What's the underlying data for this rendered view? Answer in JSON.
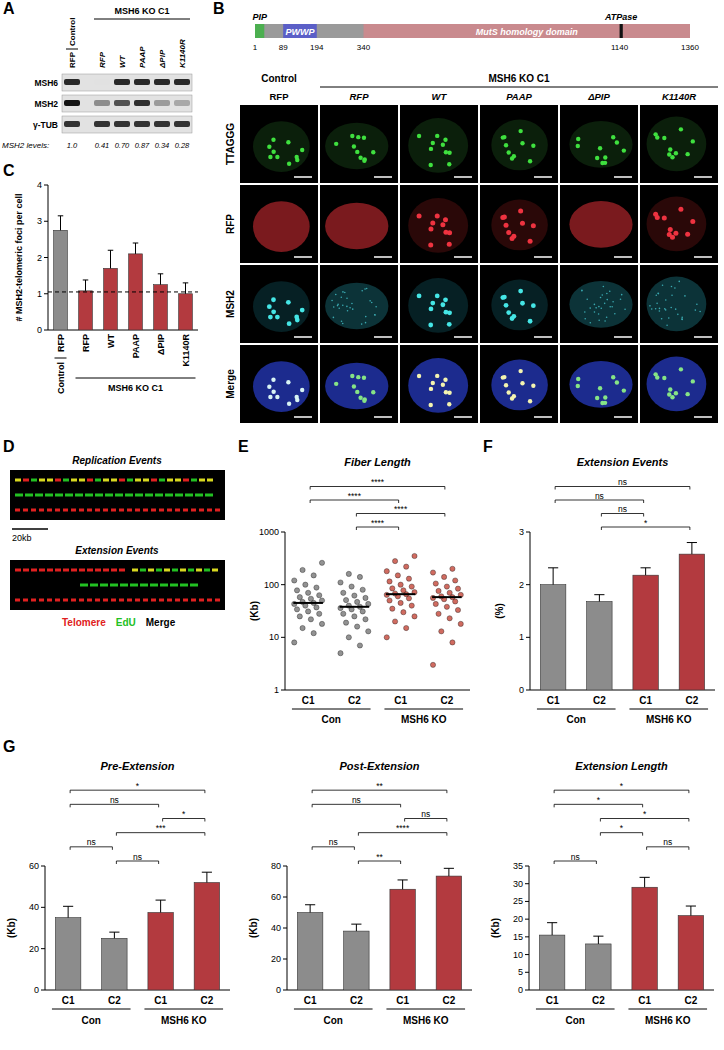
{
  "panel_labels": [
    "A",
    "B",
    "C",
    "D",
    "E",
    "F",
    "G"
  ],
  "blot": {
    "groups": [
      {
        "label": "Control",
        "lanes": [
          "RFP"
        ]
      },
      {
        "label": "MSH6 KO C1",
        "lanes": [
          "RFP",
          "WT",
          "PAAP",
          "ΔPIP",
          "K1140R"
        ]
      }
    ],
    "rows": [
      "MSH6",
      "MSH2",
      "γ-TUB"
    ],
    "quant_label": "MSH2 levels:",
    "quant": [
      "1.0",
      "0.41",
      "0.70",
      "0.87",
      "0.34",
      "0.28"
    ]
  },
  "domain": {
    "range": [
      1,
      1360
    ],
    "domains": [
      {
        "label": "PIP",
        "start": 1,
        "end": 30,
        "color": "#4caf50"
      },
      {
        "label": "PWWP",
        "start": 89,
        "end": 194,
        "color": "#5b5fc7"
      },
      {
        "label": "MutS homology domain",
        "start": 340,
        "end": 1360,
        "color": "#c98a8e"
      },
      {
        "label": "ATPase",
        "start": 1140,
        "end": 1150,
        "color": "#111111"
      }
    ],
    "ticks": [
      1,
      89,
      194,
      340,
      1140,
      1360
    ]
  },
  "microscopy": {
    "column_groups": [
      {
        "label": "Control",
        "columns": [
          "RFP"
        ]
      },
      {
        "label": "MSH6 KO C1",
        "columns": [
          "RFP",
          "WT",
          "PAAP",
          "ΔPIP",
          "K1140R"
        ]
      }
    ],
    "rows": [
      "TTAGGG",
      "RFP",
      "MSH2",
      "Merge"
    ]
  },
  "fibers": {
    "panels": [
      "Replication Events",
      "Extension Events"
    ],
    "scale_bar": "20kb",
    "legend": [
      {
        "label": "Telomere",
        "color": "#e02020"
      },
      {
        "label": "EdU",
        "color": "#22c022"
      },
      {
        "label": "Merge",
        "color": "#000000"
      }
    ]
  },
  "chart_data": [
    {
      "type": "bar",
      "ylabel": "# MSH2-telomeric foci per cell",
      "categories": [
        "RFP",
        "RFP",
        "WT",
        "PAAP",
        "ΔPIP",
        "K1140R"
      ],
      "groups": [
        {
          "label": "Control",
          "members": [
            0
          ]
        },
        {
          "label": "MSH6 KO C1",
          "members": [
            1,
            2,
            3,
            4,
            5
          ]
        }
      ],
      "values": [
        2.75,
        1.08,
        1.7,
        2.1,
        1.25,
        1.0
      ],
      "errors": [
        0.4,
        0.3,
        0.5,
        0.3,
        0.3,
        0.3
      ],
      "colors": [
        "#8c8c8c",
        "#b33a3f",
        "#b33a3f",
        "#b33a3f",
        "#b33a3f",
        "#b33a3f"
      ],
      "ylim": [
        0,
        4
      ],
      "yticks": [
        0,
        1,
        2,
        3,
        4
      ],
      "reference_line": 1.05
    },
    {
      "type": "strip",
      "title": "Fiber Length",
      "ylabel": "(Kb)",
      "log": "y",
      "categories": [
        "C1",
        "C2",
        "C1",
        "C2"
      ],
      "groups": [
        {
          "label": "Con",
          "members": [
            0,
            1
          ]
        },
        {
          "label": "MSH6 KO",
          "members": [
            2,
            3
          ]
        }
      ],
      "points": [
        [
          8,
          12,
          15,
          18,
          22,
          25,
          28,
          31,
          34,
          37,
          40,
          43,
          45,
          47,
          50,
          54,
          58,
          63,
          70,
          78,
          88,
          100,
          120,
          150,
          190,
          260
        ],
        [
          5,
          7,
          10,
          13,
          16,
          19,
          22,
          25,
          28,
          31,
          34,
          36,
          38,
          40,
          43,
          47,
          51,
          56,
          62,
          70,
          80,
          92,
          110,
          140,
          160
        ],
        [
          10,
          15,
          20,
          25,
          30,
          35,
          40,
          45,
          50,
          55,
          60,
          64,
          66,
          68,
          72,
          78,
          85,
          92,
          100,
          115,
          130,
          150,
          180,
          220,
          280,
          350
        ],
        [
          3,
          8,
          13,
          18,
          23,
          28,
          33,
          38,
          43,
          48,
          53,
          56,
          58,
          60,
          64,
          70,
          76,
          84,
          92,
          105,
          120,
          140,
          170,
          200
        ]
      ],
      "medians": [
        45,
        38,
        66,
        58
      ],
      "colors": [
        "#6e6e6e",
        "#6e6e6e",
        "#c0392b",
        "#c0392b"
      ],
      "ylim": [
        1,
        1000
      ],
      "yticks": [
        1,
        10,
        100,
        1000
      ],
      "comparisons": [
        {
          "pair": [
            0,
            3
          ],
          "label": "****"
        },
        {
          "pair": [
            0,
            2
          ],
          "label": "****"
        },
        {
          "pair": [
            1,
            3
          ],
          "label": "****"
        },
        {
          "pair": [
            1,
            2
          ],
          "label": "****"
        }
      ]
    },
    {
      "type": "bar",
      "title": "Extension Events",
      "ylabel": "(%)",
      "categories": [
        "C1",
        "C2",
        "C1",
        "C2"
      ],
      "groups": [
        {
          "label": "Con",
          "members": [
            0,
            1
          ]
        },
        {
          "label": "MSH6 KO",
          "members": [
            2,
            3
          ]
        }
      ],
      "values": [
        2.0,
        1.68,
        2.18,
        2.58
      ],
      "errors": [
        0.32,
        0.13,
        0.14,
        0.22
      ],
      "colors": [
        "#8c8c8c",
        "#8c8c8c",
        "#b33a3f",
        "#b33a3f"
      ],
      "ylim": [
        0,
        3
      ],
      "yticks": [
        0,
        1,
        2,
        3
      ],
      "comparisons": [
        {
          "pair": [
            0,
            3
          ],
          "label": "ns"
        },
        {
          "pair": [
            0,
            2
          ],
          "label": "ns"
        },
        {
          "pair": [
            1,
            2
          ],
          "label": "ns"
        },
        {
          "pair": [
            1,
            3
          ],
          "label": "*"
        }
      ]
    },
    {
      "type": "bar",
      "title": "Pre-Extension",
      "ylabel": "(Kb)",
      "categories": [
        "C1",
        "C2",
        "C1",
        "C2"
      ],
      "groups": [
        {
          "label": "Con",
          "members": [
            0,
            1
          ]
        },
        {
          "label": "MSH6 KO",
          "members": [
            2,
            3
          ]
        }
      ],
      "values": [
        35,
        25,
        37.5,
        52
      ],
      "errors": [
        5.5,
        3,
        6,
        5
      ],
      "colors": [
        "#8c8c8c",
        "#8c8c8c",
        "#b33a3f",
        "#b33a3f"
      ],
      "ylim": [
        0,
        60
      ],
      "yticks": [
        0,
        20,
        40,
        60
      ],
      "comparisons": [
        {
          "pair": [
            0,
            3
          ],
          "label": "*"
        },
        {
          "pair": [
            0,
            2
          ],
          "label": "ns"
        },
        {
          "pair": [
            2,
            3
          ],
          "label": "*"
        },
        {
          "pair": [
            1,
            3
          ],
          "label": "***"
        },
        {
          "pair": [
            0,
            1
          ],
          "label": "ns"
        },
        {
          "pair": [
            1,
            2
          ],
          "label": "ns"
        }
      ]
    },
    {
      "type": "bar",
      "title": "Post-Extension",
      "ylabel": "(Kb)",
      "categories": [
        "C1",
        "C2",
        "C1",
        "C2"
      ],
      "groups": [
        {
          "label": "Con",
          "members": [
            0,
            1
          ]
        },
        {
          "label": "MSH6 KO",
          "members": [
            2,
            3
          ]
        }
      ],
      "values": [
        50,
        38,
        65,
        73.5
      ],
      "errors": [
        5,
        4.5,
        6,
        5
      ],
      "colors": [
        "#8c8c8c",
        "#8c8c8c",
        "#b33a3f",
        "#b33a3f"
      ],
      "ylim": [
        0,
        80
      ],
      "yticks": [
        0,
        20,
        40,
        60,
        80
      ],
      "comparisons": [
        {
          "pair": [
            0,
            3
          ],
          "label": "**"
        },
        {
          "pair": [
            0,
            2
          ],
          "label": "ns"
        },
        {
          "pair": [
            2,
            3
          ],
          "label": "ns"
        },
        {
          "pair": [
            1,
            3
          ],
          "label": "****"
        },
        {
          "pair": [
            0,
            1
          ],
          "label": "ns"
        },
        {
          "pair": [
            1,
            2
          ],
          "label": "**"
        }
      ]
    },
    {
      "type": "bar",
      "title": "Extension Length",
      "ylabel": "(Kb)",
      "categories": [
        "C1",
        "C2",
        "C1",
        "C2"
      ],
      "groups": [
        {
          "label": "Con",
          "members": [
            0,
            1
          ]
        },
        {
          "label": "MSH6 KO",
          "members": [
            2,
            3
          ]
        }
      ],
      "values": [
        15.5,
        13,
        29,
        21
      ],
      "errors": [
        3.5,
        2.2,
        2.8,
        2.7
      ],
      "colors": [
        "#8c8c8c",
        "#8c8c8c",
        "#b33a3f",
        "#b33a3f"
      ],
      "ylim": [
        0,
        35
      ],
      "yticks": [
        0,
        5,
        10,
        15,
        20,
        25,
        30,
        35
      ],
      "comparisons": [
        {
          "pair": [
            0,
            3
          ],
          "label": "*"
        },
        {
          "pair": [
            0,
            2
          ],
          "label": "*"
        },
        {
          "pair": [
            1,
            3
          ],
          "label": "*"
        },
        {
          "pair": [
            1,
            2
          ],
          "label": "*"
        },
        {
          "pair": [
            2,
            3
          ],
          "label": "ns"
        },
        {
          "pair": [
            0,
            1
          ],
          "label": "ns"
        }
      ]
    }
  ]
}
